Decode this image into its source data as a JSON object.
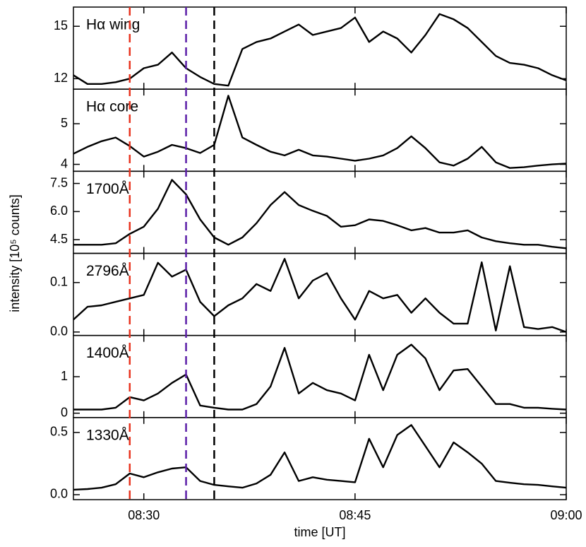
{
  "chart_data": [
    {
      "type": "line",
      "title": "Hα wing",
      "color": "#000000",
      "ylabel": "intensity [10⁵ counts]",
      "vlines": [
        {
          "x": "08:29",
          "color": "#e8331f"
        },
        {
          "x": "08:33",
          "color": "#5b1ea8"
        },
        {
          "x": "08:35",
          "color": "#000000"
        }
      ],
      "x": [
        "08:25",
        "08:26",
        "08:27",
        "08:28",
        "08:29",
        "08:30",
        "08:31",
        "08:32",
        "08:33",
        "08:34",
        "08:35",
        "08:36",
        "08:37",
        "08:38",
        "08:39",
        "08:40",
        "08:41",
        "08:42",
        "08:43",
        "08:44",
        "08:45",
        "08:46",
        "08:47",
        "08:48",
        "08:49",
        "08:50",
        "08:51",
        "08:52",
        "08:53",
        "08:54",
        "08:55",
        "08:56",
        "08:57",
        "08:58",
        "08:59",
        "09:00"
      ],
      "values": [
        12.2,
        11.7,
        11.7,
        11.8,
        12.0,
        12.6,
        12.8,
        13.5,
        12.6,
        12.1,
        11.7,
        11.6,
        13.7,
        14.1,
        14.3,
        14.7,
        15.1,
        14.5,
        14.7,
        14.9,
        15.5,
        14.1,
        14.7,
        14.3,
        13.5,
        14.5,
        15.7,
        15.4,
        14.9,
        14.1,
        13.3,
        12.9,
        12.8,
        12.6,
        12.2,
        11.9
      ],
      "ylim": [
        11.4,
        16.1
      ],
      "yticks": [
        12,
        15
      ]
    },
    {
      "type": "line",
      "title": "Hα core",
      "color": "#000000",
      "x": [
        "08:25",
        "08:26",
        "08:27",
        "08:28",
        "08:29",
        "08:30",
        "08:31",
        "08:32",
        "08:33",
        "08:34",
        "08:35",
        "08:36",
        "08:37",
        "08:38",
        "08:39",
        "08:40",
        "08:41",
        "08:42",
        "08:43",
        "08:44",
        "08:45",
        "08:46",
        "08:47",
        "08:48",
        "08:49",
        "08:50",
        "08:51",
        "08:52",
        "08:53",
        "08:54",
        "08:55",
        "08:56",
        "08:57",
        "08:58",
        "08:59",
        "09:00"
      ],
      "values": [
        4.26,
        4.43,
        4.57,
        4.66,
        4.45,
        4.19,
        4.31,
        4.48,
        4.4,
        4.28,
        4.48,
        5.69,
        4.66,
        4.48,
        4.31,
        4.22,
        4.36,
        4.22,
        4.19,
        4.14,
        4.09,
        4.14,
        4.22,
        4.4,
        4.69,
        4.4,
        4.05,
        3.97,
        4.14,
        4.43,
        4.05,
        3.91,
        3.93,
        3.97,
        4.0,
        4.02
      ],
      "ylim": [
        3.83,
        5.85
      ],
      "yticks": [
        4,
        5
      ]
    },
    {
      "type": "line",
      "title": "1700Å",
      "color": "#000000",
      "x": [
        "08:25",
        "08:26",
        "08:27",
        "08:28",
        "08:29",
        "08:30",
        "08:31",
        "08:32",
        "08:33",
        "08:34",
        "08:35",
        "08:36",
        "08:37",
        "08:38",
        "08:39",
        "08:40",
        "08:41",
        "08:42",
        "08:43",
        "08:44",
        "08:45",
        "08:46",
        "08:47",
        "08:48",
        "08:49",
        "08:50",
        "08:51",
        "08:52",
        "08:53",
        "08:54",
        "08:55",
        "08:56",
        "08:57",
        "08:58",
        "08:59",
        "09:00"
      ],
      "values": [
        4.23,
        4.23,
        4.23,
        4.31,
        4.81,
        5.19,
        6.15,
        7.69,
        6.92,
        5.58,
        4.62,
        4.23,
        4.62,
        5.38,
        6.35,
        7.04,
        6.35,
        6.04,
        5.77,
        5.19,
        5.27,
        5.58,
        5.5,
        5.27,
        5.0,
        5.12,
        4.88,
        4.88,
        5.0,
        4.62,
        4.42,
        4.31,
        4.23,
        4.23,
        4.12,
        4.04
      ],
      "ylim": [
        3.77,
        8.15
      ],
      "yticks": [
        4.5,
        {
          "value": 6,
          "label": "6.0"
        },
        7.5
      ]
    },
    {
      "type": "line",
      "title": "2796Å",
      "color": "#000000",
      "x": [
        "08:25",
        "08:26",
        "08:27",
        "08:28",
        "08:29",
        "08:30",
        "08:31",
        "08:32",
        "08:33",
        "08:34",
        "08:35",
        "08:36",
        "08:37",
        "08:38",
        "08:39",
        "08:40",
        "08:41",
        "08:42",
        "08:43",
        "08:44",
        "08:45",
        "08:46",
        "08:47",
        "08:48",
        "08:49",
        "08:50",
        "08:51",
        "08:52",
        "08:53",
        "08:54",
        "08:55",
        "08:56",
        "08:57",
        "08:58",
        "08:59",
        "09:00"
      ],
      "values": [
        0.025,
        0.051,
        0.054,
        0.061,
        0.068,
        0.075,
        0.14,
        0.112,
        0.126,
        0.061,
        0.032,
        0.054,
        0.068,
        0.097,
        0.083,
        0.148,
        0.068,
        0.104,
        0.119,
        0.068,
        0.025,
        0.083,
        0.068,
        0.075,
        0.039,
        0.068,
        0.039,
        0.017,
        0.017,
        0.141,
        0.003,
        0.133,
        0.01,
        0.006,
        0.01,
        0
      ],
      "ylim": [
        -0.007,
        0.159
      ],
      "yticks": [
        {
          "value": 0,
          "label": "0.0"
        },
        0.1
      ]
    },
    {
      "type": "line",
      "title": "1400Å",
      "color": "#000000",
      "x": [
        "08:25",
        "08:26",
        "08:27",
        "08:28",
        "08:29",
        "08:30",
        "08:31",
        "08:32",
        "08:33",
        "08:34",
        "08:35",
        "08:36",
        "08:37",
        "08:38",
        "08:39",
        "08:40",
        "08:41",
        "08:42",
        "08:43",
        "08:44",
        "08:45",
        "08:46",
        "08:47",
        "08:48",
        "08:49",
        "08:50",
        "08:51",
        "08:52",
        "08:53",
        "08:54",
        "08:55",
        "08:56",
        "08:57",
        "08:58",
        "08:59",
        "09:00"
      ],
      "values": [
        0.1,
        0.1,
        0.1,
        0.15,
        0.44,
        0.35,
        0.54,
        0.83,
        1.06,
        0.21,
        0.15,
        0.1,
        0.1,
        0.25,
        0.73,
        1.79,
        0.54,
        0.83,
        0.63,
        0.54,
        0.35,
        1.6,
        0.63,
        1.6,
        1.88,
        1.5,
        0.63,
        1.17,
        1.21,
        0.73,
        0.25,
        0.25,
        0.15,
        0.15,
        0.12,
        0.1
      ],
      "ylim": [
        -0.12,
        2.13
      ],
      "yticks": [
        0,
        1
      ]
    },
    {
      "type": "line",
      "title": "1330Å",
      "color": "#000000",
      "xlabel": "time [UT]",
      "xlim": [
        "08:25",
        "09:00"
      ],
      "xticks": [
        "08:30",
        "08:45",
        "09:00"
      ],
      "x": [
        "08:25",
        "08:26",
        "08:27",
        "08:28",
        "08:29",
        "08:30",
        "08:31",
        "08:32",
        "08:33",
        "08:34",
        "08:35",
        "08:36",
        "08:37",
        "08:38",
        "08:39",
        "08:40",
        "08:41",
        "08:42",
        "08:43",
        "08:44",
        "08:45",
        "08:46",
        "08:47",
        "08:48",
        "08:49",
        "08:50",
        "08:51",
        "08:52",
        "08:53",
        "08:54",
        "08:55",
        "08:56",
        "08:57",
        "08:58",
        "08:59",
        "09:00"
      ],
      "values": [
        0.04,
        0.045,
        0.056,
        0.084,
        0.17,
        0.14,
        0.18,
        0.21,
        0.22,
        0.11,
        0.079,
        0.067,
        0.056,
        0.09,
        0.16,
        0.34,
        0.11,
        0.14,
        0.12,
        0.11,
        0.1,
        0.45,
        0.22,
        0.48,
        0.56,
        0.39,
        0.22,
        0.42,
        0.34,
        0.25,
        0.11,
        0.096,
        0.084,
        0.079,
        0.067,
        0.056
      ],
      "ylim": [
        -0.04,
        0.62
      ],
      "yticks": [
        {
          "value": 0,
          "label": "0.0"
        },
        0.5
      ]
    }
  ]
}
